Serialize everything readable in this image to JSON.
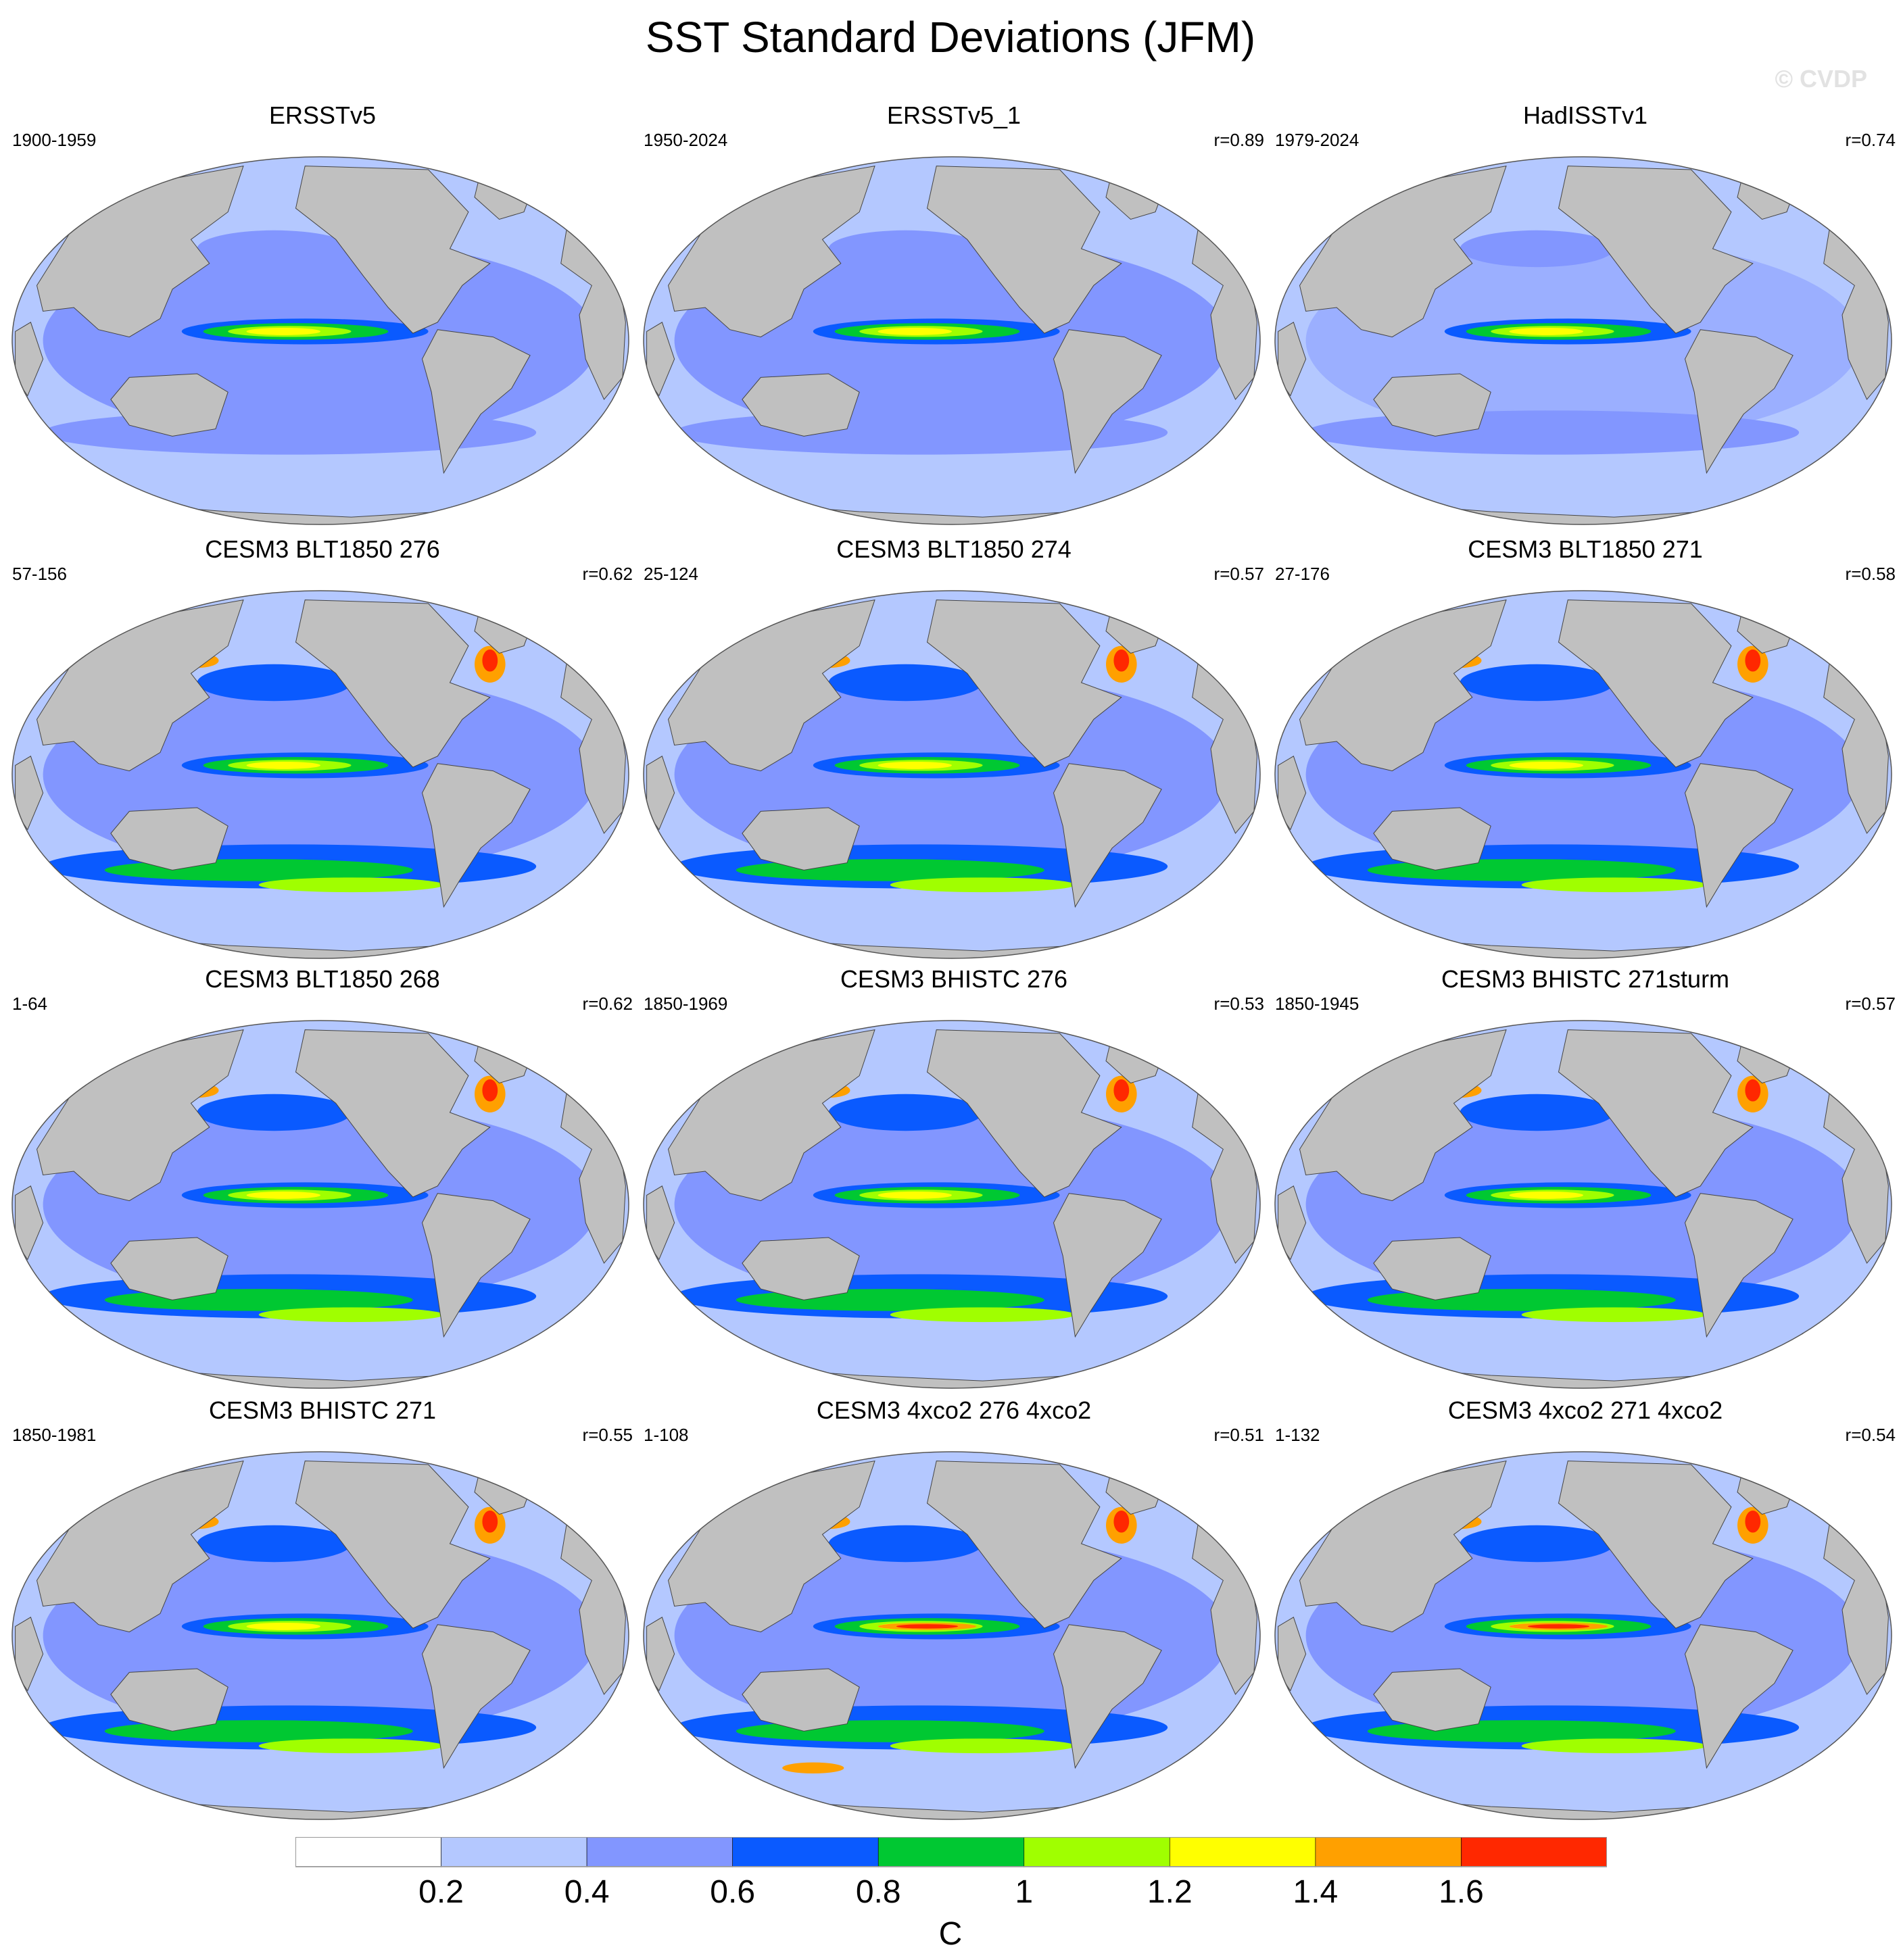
{
  "title": "SST Standard Deviations (JFM)",
  "watermark": "© CVDP",
  "colorbar": {
    "unit": "C",
    "tick_labels": [
      "0.2",
      "0.4",
      "0.6",
      "0.8",
      "1",
      "1.2",
      "1.4",
      "1.6"
    ],
    "bins": [
      {
        "color": "#ffffff"
      },
      {
        "color": "#b4c8ff"
      },
      {
        "color": "#8296ff"
      },
      {
        "color": "#0a5aff"
      },
      {
        "color": "#00c832"
      },
      {
        "color": "#a0ff00"
      },
      {
        "color": "#ffff00"
      },
      {
        "color": "#ffa000"
      },
      {
        "color": "#ff2800"
      }
    ]
  },
  "land_color": "#c0c0c0",
  "panels": [
    {
      "title": "ERSSTv5",
      "period": "1900-1959",
      "r": ""
    },
    {
      "title": "ERSSTv5_1",
      "period": "1950-2024",
      "r": "r=0.89"
    },
    {
      "title": "HadISSTv1",
      "period": "1979-2024",
      "r": "r=0.74"
    },
    {
      "title": "CESM3 BLT1850 276",
      "period": "57-156",
      "r": "r=0.62"
    },
    {
      "title": "CESM3 BLT1850 274",
      "period": "25-124",
      "r": "r=0.57"
    },
    {
      "title": "CESM3 BLT1850 271",
      "period": "27-176",
      "r": "r=0.58"
    },
    {
      "title": "CESM3 BLT1850 268",
      "period": "1-64",
      "r": "r=0.62"
    },
    {
      "title": "CESM3 BHISTC 276",
      "period": "1850-1969",
      "r": "r=0.53"
    },
    {
      "title": "CESM3 BHISTC 271sturm",
      "period": "1850-1945",
      "r": "r=0.57"
    },
    {
      "title": "CESM3 BHISTC 271",
      "period": "1850-1981",
      "r": "r=0.55"
    },
    {
      "title": "CESM3 4xco2 276 4xco2",
      "period": "1-108",
      "r": "r=0.51"
    },
    {
      "title": "CESM3 4xco2 271 4xco2",
      "period": "1-132",
      "r": "r=0.54"
    }
  ]
}
